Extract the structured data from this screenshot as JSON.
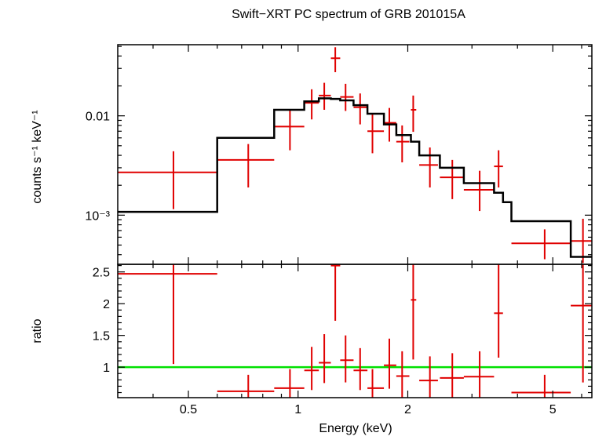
{
  "chart_data": {
    "type": "scatter",
    "title": "Swift−XRT PC spectrum of GRB 201015A",
    "xlabel": "Energy (keV)",
    "x_scale": "log",
    "xlim": [
      0.32,
      6.4
    ],
    "x_ticks": [
      {
        "value": 0.5,
        "label": "0.5"
      },
      {
        "value": 1,
        "label": "1"
      },
      {
        "value": 2,
        "label": "2"
      },
      {
        "value": 5,
        "label": "5"
      }
    ],
    "colors": {
      "data": "#e00000",
      "model": "#000000",
      "ratio_line": "#00e000"
    },
    "panels": [
      {
        "name": "spectrum",
        "ylabel": "counts s⁻¹ keV⁻¹",
        "y_scale": "log",
        "ylim": [
          0.00032,
          0.052
        ],
        "y_ticks": [
          {
            "value": 0.01,
            "label": "0.01"
          },
          {
            "value": 0.001,
            "label": "10⁻³"
          }
        ],
        "series": [
          {
            "kind": "errorbars",
            "points": [
              {
                "x": 0.455,
                "xlo": 0.32,
                "xhi": 0.6,
                "y": 0.0027,
                "ylo": 0.00115,
                "yhi": 0.0044
              },
              {
                "x": 0.73,
                "xlo": 0.6,
                "xhi": 0.86,
                "y": 0.0036,
                "ylo": 0.0019,
                "yhi": 0.0052
              },
              {
                "x": 0.95,
                "xlo": 0.86,
                "xhi": 1.04,
                "y": 0.0078,
                "ylo": 0.0045,
                "yhi": 0.0115
              },
              {
                "x": 1.09,
                "xlo": 1.04,
                "xhi": 1.14,
                "y": 0.0135,
                "ylo": 0.0092,
                "yhi": 0.0185
              },
              {
                "x": 1.18,
                "xlo": 1.14,
                "xhi": 1.23,
                "y": 0.016,
                "ylo": 0.0115,
                "yhi": 0.0215
              },
              {
                "x": 1.265,
                "xlo": 1.23,
                "xhi": 1.305,
                "y": 0.038,
                "ylo": 0.0275,
                "yhi": 0.049
              },
              {
                "x": 1.35,
                "xlo": 1.305,
                "xhi": 1.42,
                "y": 0.0155,
                "ylo": 0.0112,
                "yhi": 0.021
              },
              {
                "x": 1.48,
                "xlo": 1.42,
                "xhi": 1.55,
                "y": 0.0122,
                "ylo": 0.0082,
                "yhi": 0.0168
              },
              {
                "x": 1.6,
                "xlo": 1.55,
                "xhi": 1.72,
                "y": 0.007,
                "ylo": 0.0042,
                "yhi": 0.0103
              },
              {
                "x": 1.78,
                "xlo": 1.72,
                "xhi": 1.86,
                "y": 0.0085,
                "ylo": 0.0055,
                "yhi": 0.012
              },
              {
                "x": 1.93,
                "xlo": 1.86,
                "xhi": 2.02,
                "y": 0.0055,
                "ylo": 0.0034,
                "yhi": 0.008
              },
              {
                "x": 2.07,
                "xlo": 2.04,
                "xhi": 2.11,
                "y": 0.0115,
                "ylo": 0.0069,
                "yhi": 0.016
              },
              {
                "x": 2.3,
                "xlo": 2.15,
                "xhi": 2.42,
                "y": 0.0032,
                "ylo": 0.0019,
                "yhi": 0.0048
              },
              {
                "x": 2.65,
                "xlo": 2.45,
                "xhi": 2.85,
                "y": 0.0024,
                "ylo": 0.00145,
                "yhi": 0.0036
              },
              {
                "x": 3.15,
                "xlo": 2.85,
                "xhi": 3.45,
                "y": 0.0018,
                "ylo": 0.0011,
                "yhi": 0.0028
              },
              {
                "x": 3.55,
                "xlo": 3.45,
                "xhi": 3.65,
                "y": 0.0031,
                "ylo": 0.0019,
                "yhi": 0.0045
              },
              {
                "x": 4.75,
                "xlo": 3.85,
                "xhi": 5.6,
                "y": 0.00052,
                "ylo": 0.00036,
                "yhi": 0.00072
              },
              {
                "x": 6.05,
                "xlo": 5.6,
                "xhi": 6.4,
                "y": 0.00055,
                "ylo": 0.00033,
                "yhi": 0.00092
              }
            ]
          },
          {
            "kind": "model_step",
            "steps": [
              {
                "x0": 0.32,
                "x1": 0.6,
                "y": 0.00108
              },
              {
                "x0": 0.6,
                "x1": 0.86,
                "y": 0.006
              },
              {
                "x0": 0.86,
                "x1": 1.04,
                "y": 0.0115
              },
              {
                "x0": 1.04,
                "x1": 1.14,
                "y": 0.014
              },
              {
                "x0": 1.14,
                "x1": 1.23,
                "y": 0.015
              },
              {
                "x0": 1.23,
                "x1": 1.305,
                "y": 0.0148
              },
              {
                "x0": 1.305,
                "x1": 1.42,
                "y": 0.0143
              },
              {
                "x0": 1.42,
                "x1": 1.55,
                "y": 0.0128
              },
              {
                "x0": 1.55,
                "x1": 1.72,
                "y": 0.0105
              },
              {
                "x0": 1.72,
                "x1": 1.86,
                "y": 0.0082
              },
              {
                "x0": 1.86,
                "x1": 2.04,
                "y": 0.0064
              },
              {
                "x0": 2.04,
                "x1": 2.15,
                "y": 0.0055
              },
              {
                "x0": 2.15,
                "x1": 2.45,
                "y": 0.004
              },
              {
                "x0": 2.45,
                "x1": 2.85,
                "y": 0.003
              },
              {
                "x0": 2.85,
                "x1": 3.45,
                "y": 0.0021
              },
              {
                "x0": 3.45,
                "x1": 3.65,
                "y": 0.00168
              },
              {
                "x0": 3.65,
                "x1": 3.85,
                "y": 0.00135
              },
              {
                "x0": 3.85,
                "x1": 5.6,
                "y": 0.00087
              },
              {
                "x0": 5.6,
                "x1": 6.4,
                "y": 0.00038
              }
            ]
          }
        ]
      },
      {
        "name": "ratio",
        "ylabel": "ratio",
        "y_scale": "linear",
        "ylim": [
          0.52,
          2.62
        ],
        "y_ticks": [
          {
            "value": 1,
            "label": "1"
          },
          {
            "value": 1.5,
            "label": "1.5"
          },
          {
            "value": 2,
            "label": "2"
          },
          {
            "value": 2.5,
            "label": "2.5"
          }
        ],
        "reference_line": 1.0,
        "series": [
          {
            "kind": "errorbars",
            "points": [
              {
                "x": 0.455,
                "xlo": 0.32,
                "xhi": 0.6,
                "y": 2.47,
                "ylo": 1.05,
                "yhi": 2.62
              },
              {
                "x": 0.73,
                "xlo": 0.6,
                "xhi": 0.86,
                "y": 0.62,
                "ylo": 0.52,
                "yhi": 0.88
              },
              {
                "x": 0.95,
                "xlo": 0.86,
                "xhi": 1.04,
                "y": 0.67,
                "ylo": 0.52,
                "yhi": 0.97
              },
              {
                "x": 1.09,
                "xlo": 1.04,
                "xhi": 1.14,
                "y": 0.95,
                "ylo": 0.64,
                "yhi": 1.32
              },
              {
                "x": 1.18,
                "xlo": 1.14,
                "xhi": 1.23,
                "y": 1.07,
                "ylo": 0.75,
                "yhi": 1.52
              },
              {
                "x": 1.265,
                "xlo": 1.23,
                "xhi": 1.305,
                "y": 2.6,
                "ylo": 1.73,
                "yhi": 2.62
              },
              {
                "x": 1.35,
                "xlo": 1.305,
                "xhi": 1.42,
                "y": 1.11,
                "ylo": 0.76,
                "yhi": 1.5
              },
              {
                "x": 1.48,
                "xlo": 1.42,
                "xhi": 1.55,
                "y": 0.95,
                "ylo": 0.64,
                "yhi": 1.3
              },
              {
                "x": 1.6,
                "xlo": 1.55,
                "xhi": 1.72,
                "y": 0.67,
                "ylo": 0.52,
                "yhi": 0.97
              },
              {
                "x": 1.78,
                "xlo": 1.72,
                "xhi": 1.86,
                "y": 1.03,
                "ylo": 0.66,
                "yhi": 1.45
              },
              {
                "x": 1.93,
                "xlo": 1.86,
                "xhi": 2.02,
                "y": 0.86,
                "ylo": 0.52,
                "yhi": 1.25
              },
              {
                "x": 2.07,
                "xlo": 2.04,
                "xhi": 2.11,
                "y": 2.06,
                "ylo": 1.12,
                "yhi": 2.62
              },
              {
                "x": 2.3,
                "xlo": 2.15,
                "xhi": 2.42,
                "y": 0.79,
                "ylo": 0.52,
                "yhi": 1.17
              },
              {
                "x": 2.65,
                "xlo": 2.45,
                "xhi": 2.85,
                "y": 0.83,
                "ylo": 0.52,
                "yhi": 1.22
              },
              {
                "x": 3.15,
                "xlo": 2.85,
                "xhi": 3.45,
                "y": 0.85,
                "ylo": 0.52,
                "yhi": 1.25
              },
              {
                "x": 3.55,
                "xlo": 3.45,
                "xhi": 3.65,
                "y": 1.85,
                "ylo": 1.15,
                "yhi": 2.62
              },
              {
                "x": 4.75,
                "xlo": 3.85,
                "xhi": 5.6,
                "y": 0.6,
                "ylo": 0.52,
                "yhi": 0.88
              },
              {
                "x": 6.05,
                "xlo": 5.6,
                "xhi": 6.4,
                "y": 1.97,
                "ylo": 0.76,
                "yhi": 2.62
              }
            ]
          }
        ]
      }
    ]
  }
}
